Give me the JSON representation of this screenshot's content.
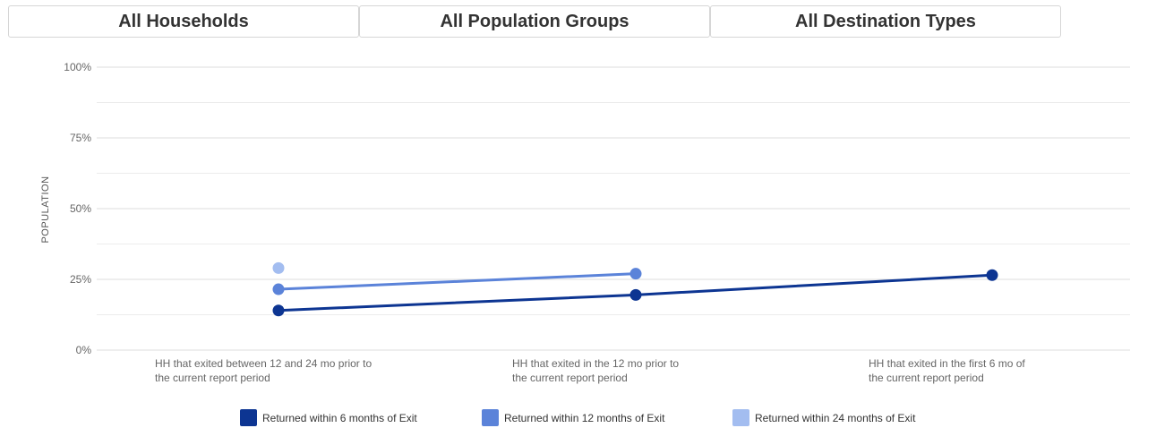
{
  "filters": [
    {
      "label": "All Households"
    },
    {
      "label": "All Population Groups"
    },
    {
      "label": "All Destination Types"
    }
  ],
  "chart_data": {
    "type": "line",
    "title": "",
    "ylabel": "POPULATION",
    "xlabel": "",
    "ylim": [
      0,
      100
    ],
    "y_ticks": [
      0,
      25,
      50,
      75,
      100
    ],
    "y_tick_labels": [
      "0%",
      "25%",
      "50%",
      "75%",
      "100%"
    ],
    "grid": true,
    "legend_position": "bottom",
    "categories": [
      [
        "HH that exited between 12 and 24 mo prior to",
        "the current report period"
      ],
      [
        "HH that exited in the 12 mo prior to",
        "the current report period"
      ],
      [
        "HH that exited in the first 6 mo of",
        "the current report period"
      ]
    ],
    "series": [
      {
        "name": "Returned within 6 months of Exit",
        "color": "#0d3592",
        "values": [
          14,
          19.5,
          26.5
        ]
      },
      {
        "name": "Returned within 12 months of Exit",
        "color": "#5b83d9",
        "values": [
          21.5,
          27,
          null
        ]
      },
      {
        "name": "Returned within 24 months of Exit",
        "color": "#a3bdf0",
        "values": [
          29,
          null,
          null
        ]
      }
    ]
  }
}
